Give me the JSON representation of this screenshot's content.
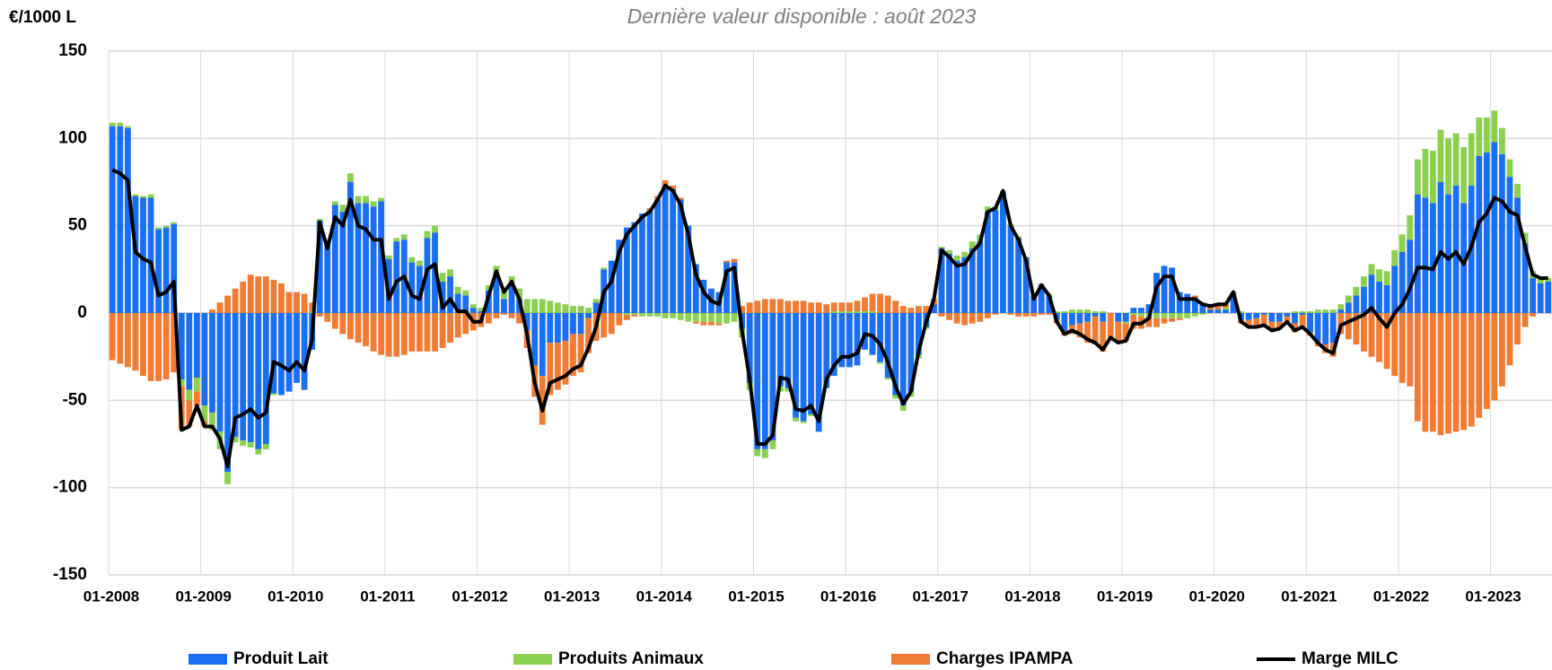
{
  "chart_data": {
    "type": "bar",
    "stacked": true,
    "title": "Dernière valeur disponible : août 2023",
    "y_label": "€/1000 L",
    "grid": true,
    "legend": "bottom",
    "ylim": [
      -150,
      150
    ],
    "yticks": [
      150,
      100,
      50,
      0,
      -50,
      -100,
      -150
    ],
    "categories": [
      "01-2008",
      null,
      null,
      null,
      null,
      null,
      null,
      null,
      null,
      null,
      null,
      null,
      "01-2009",
      null,
      null,
      null,
      null,
      null,
      null,
      null,
      null,
      null,
      null,
      null,
      "01-2010",
      null,
      null,
      null,
      null,
      null,
      null,
      null,
      null,
      null,
      null,
      null,
      "01-2011",
      null,
      null,
      null,
      null,
      null,
      null,
      null,
      null,
      null,
      null,
      null,
      "01-2012",
      null,
      null,
      null,
      null,
      null,
      null,
      null,
      null,
      null,
      null,
      null,
      "01-2013",
      null,
      null,
      null,
      null,
      null,
      null,
      null,
      null,
      null,
      null,
      null,
      "01-2014",
      null,
      null,
      null,
      null,
      null,
      null,
      null,
      null,
      null,
      null,
      null,
      "01-2015",
      null,
      null,
      null,
      null,
      null,
      null,
      null,
      null,
      null,
      null,
      null,
      "01-2016",
      null,
      null,
      null,
      null,
      null,
      null,
      null,
      null,
      null,
      null,
      null,
      "01-2017",
      null,
      null,
      null,
      null,
      null,
      null,
      null,
      null,
      null,
      null,
      null,
      "01-2018",
      null,
      null,
      null,
      null,
      null,
      null,
      null,
      null,
      null,
      null,
      null,
      "01-2019",
      null,
      null,
      null,
      null,
      null,
      null,
      null,
      null,
      null,
      null,
      null,
      "01-2020",
      null,
      null,
      null,
      null,
      null,
      null,
      null,
      null,
      null,
      null,
      null,
      "01-2021",
      null,
      null,
      null,
      null,
      null,
      null,
      null,
      null,
      null,
      null,
      null,
      "01-2022",
      null,
      null,
      null,
      null,
      null,
      null,
      null,
      null,
      null,
      null,
      null,
      "01-2023",
      null,
      null,
      null,
      null,
      null,
      null,
      null
    ],
    "series": [
      {
        "name": "Produit Lait",
        "color": "#1a6ef0",
        "type": "bar",
        "values": [
          107,
          107,
          106,
          67,
          66,
          66,
          48,
          49,
          51,
          -38,
          -44,
          -37,
          -53,
          -57,
          -68,
          -91,
          -71,
          -73,
          -74,
          -78,
          -75,
          -46,
          -47,
          -45,
          -40,
          -44,
          -21,
          53,
          41,
          62,
          58,
          75,
          63,
          63,
          61,
          64,
          31,
          41,
          42,
          29,
          27,
          43,
          46,
          18,
          21,
          11,
          10,
          3,
          1,
          13,
          23,
          8,
          16,
          8,
          -10,
          -30,
          -36,
          -17,
          -17,
          -16,
          -12,
          -12,
          -3,
          6,
          25,
          30,
          42,
          49,
          52,
          57,
          59,
          65,
          73,
          71,
          65,
          50,
          28,
          19,
          14,
          12,
          29,
          29,
          -9,
          -40,
          -78,
          -78,
          -73,
          -42,
          -43,
          -60,
          -62,
          -58,
          -68,
          -43,
          -36,
          -31,
          -31,
          -30,
          -21,
          -24,
          -28,
          -37,
          -47,
          -53,
          -45,
          -24,
          -8,
          5,
          37,
          34,
          30,
          32,
          37,
          41,
          58,
          59,
          69,
          50,
          43,
          32,
          10,
          16,
          10,
          -4,
          -10,
          -7,
          -6,
          -5,
          -2,
          -5,
          0,
          -5,
          -5,
          3,
          3,
          5,
          23,
          27,
          26,
          12,
          11,
          9,
          5,
          2,
          2,
          2,
          10,
          -4,
          -4,
          -3,
          -1,
          -5,
          -5,
          -2,
          -6,
          -1,
          -11,
          -16,
          -18,
          -17,
          2,
          6,
          10,
          15,
          22,
          18,
          16,
          27,
          35,
          42,
          68,
          66,
          63,
          75,
          68,
          73,
          63,
          73,
          90,
          92,
          98,
          91,
          78,
          66,
          40,
          20,
          17,
          18
        ]
      },
      {
        "name": "Produits Animaux",
        "color": "#8cd050",
        "type": "bar",
        "values": [
          2,
          2,
          1,
          1,
          1,
          2,
          1,
          1,
          1,
          -4,
          -6,
          -8,
          -9,
          -10,
          -10,
          -7,
          -3,
          -3,
          -3,
          -3,
          -3,
          -1,
          0,
          0,
          0,
          0,
          1,
          1,
          1,
          2,
          4,
          5,
          4,
          4,
          3,
          2,
          2,
          2,
          3,
          3,
          3,
          4,
          4,
          5,
          4,
          4,
          3,
          2,
          2,
          3,
          4,
          5,
          5,
          6,
          8,
          8,
          8,
          7,
          6,
          5,
          4,
          4,
          3,
          2,
          1,
          0,
          0,
          -1,
          -1,
          -2,
          -2,
          -2,
          -3,
          -3,
          -4,
          -5,
          -5,
          -5,
          -5,
          -6,
          -6,
          -5,
          -5,
          -4,
          -4,
          -5,
          -5,
          -3,
          -2,
          -2,
          -1,
          -1,
          0,
          0,
          1,
          1,
          1,
          1,
          1,
          1,
          -1,
          -1,
          -2,
          -3,
          -3,
          -2,
          -1,
          0,
          1,
          2,
          3,
          3,
          4,
          4,
          3,
          2,
          1,
          1,
          1,
          0,
          0,
          1,
          1,
          1,
          1,
          2,
          2,
          2,
          1,
          1,
          0,
          0,
          -1,
          -1,
          -2,
          -2,
          -3,
          -3,
          -3,
          -3,
          -3,
          -2,
          -1,
          0,
          0,
          1,
          1,
          1,
          0,
          0,
          0,
          0,
          0,
          0,
          1,
          1,
          1,
          2,
          2,
          2,
          3,
          4,
          5,
          6,
          6,
          7,
          8,
          9,
          10,
          14,
          20,
          28,
          30,
          30,
          32,
          30,
          32,
          30,
          22,
          20,
          18,
          15,
          10,
          8,
          6,
          4,
          3,
          2
        ]
      },
      {
        "name": "Charges IPAMPA",
        "color": "#f07c34",
        "type": "bar",
        "values": [
          -27,
          -29,
          -31,
          -33,
          -36,
          -39,
          -39,
          -38,
          -34,
          -25,
          -15,
          -8,
          -3,
          2,
          6,
          10,
          14,
          18,
          22,
          21,
          21,
          19,
          17,
          12,
          12,
          11,
          5,
          -2,
          -5,
          -9,
          -12,
          -15,
          -17,
          -19,
          -22,
          -24,
          -25,
          -25,
          -24,
          -22,
          -22,
          -22,
          -22,
          -20,
          -17,
          -14,
          -12,
          -10,
          -8,
          -6,
          -3,
          -1,
          -3,
          -6,
          -10,
          -18,
          -28,
          -30,
          -27,
          -25,
          -24,
          -22,
          -20,
          -16,
          -14,
          -12,
          -7,
          -3,
          -1,
          0,
          1,
          2,
          3,
          2,
          1,
          0,
          -1,
          -2,
          -2,
          -1,
          1,
          2,
          4,
          6,
          7,
          8,
          8,
          8,
          7,
          7,
          7,
          6,
          6,
          5,
          5,
          5,
          5,
          6,
          8,
          10,
          11,
          10,
          7,
          4,
          3,
          4,
          4,
          3,
          -2,
          -4,
          -6,
          -7,
          -6,
          -5,
          -3,
          -1,
          0,
          -1,
          -2,
          -2,
          -2,
          -1,
          -1,
          -2,
          -3,
          -5,
          -8,
          -12,
          -16,
          -17,
          -14,
          -12,
          -10,
          -8,
          -7,
          -6,
          -5,
          -3,
          -2,
          -1,
          0,
          1,
          1,
          2,
          3,
          2,
          1,
          -2,
          -4,
          -5,
          -6,
          -5,
          -4,
          -3,
          -5,
          -8,
          -2,
          -3,
          -5,
          -8,
          -12,
          -15,
          -18,
          -22,
          -25,
          -28,
          -32,
          -36,
          -40,
          -42,
          -62,
          -68,
          -68,
          -70,
          -69,
          -68,
          -67,
          -65,
          -60,
          -55,
          -50,
          -42,
          -30,
          -18,
          -8,
          -2,
          0,
          0
        ]
      },
      {
        "name": "Marge MILC",
        "color": "#000000",
        "type": "line",
        "values": [
          82,
          80,
          76,
          35,
          31,
          29,
          10,
          12,
          18,
          -67,
          -65,
          -53,
          -65,
          -65,
          -72,
          -88,
          -60,
          -58,
          -55,
          -60,
          -57,
          -28,
          -30,
          -33,
          -28,
          -33,
          -15,
          52,
          37,
          55,
          50,
          65,
          50,
          48,
          42,
          42,
          8,
          18,
          21,
          10,
          8,
          25,
          28,
          3,
          8,
          1,
          1,
          -5,
          -5,
          10,
          24,
          12,
          18,
          8,
          -12,
          -40,
          -56,
          -40,
          -38,
          -36,
          -32,
          -30,
          -20,
          -8,
          12,
          18,
          35,
          45,
          50,
          55,
          58,
          65,
          73,
          70,
          62,
          45,
          22,
          12,
          7,
          5,
          24,
          26,
          -10,
          -38,
          -75,
          -75,
          -70,
          -37,
          -38,
          -55,
          -56,
          -53,
          -62,
          -38,
          -30,
          -25,
          -25,
          -23,
          -12,
          -13,
          -18,
          -28,
          -42,
          -52,
          -45,
          -22,
          -5,
          8,
          36,
          32,
          27,
          28,
          35,
          40,
          58,
          60,
          70,
          50,
          42,
          30,
          8,
          16,
          10,
          -5,
          -12,
          -10,
          -12,
          -15,
          -17,
          -21,
          -14,
          -17,
          -16,
          -6,
          -6,
          -3,
          15,
          21,
          21,
          8,
          8,
          8,
          5,
          4,
          5,
          5,
          12,
          -5,
          -8,
          -8,
          -7,
          -10,
          -9,
          -5,
          -10,
          -8,
          -12,
          -17,
          -21,
          -23,
          -7,
          -5,
          -3,
          -1,
          3,
          -3,
          -8,
          0,
          5,
          14,
          26,
          26,
          25,
          35,
          31,
          35,
          28,
          38,
          52,
          57,
          66,
          64,
          58,
          56,
          38,
          22,
          20,
          20
        ]
      }
    ]
  }
}
